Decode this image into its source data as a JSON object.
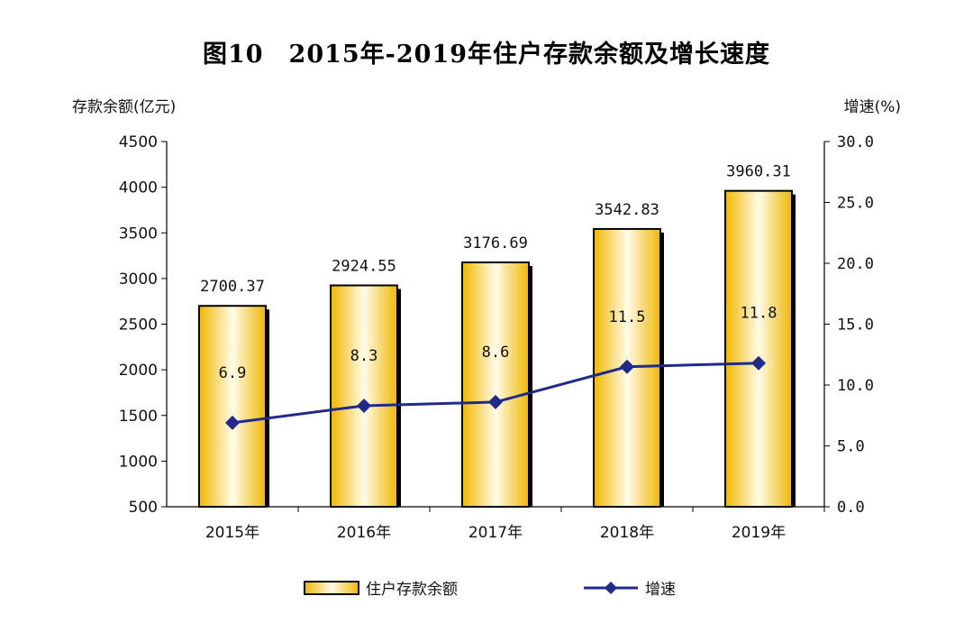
{
  "chart_data": {
    "type": "bar",
    "title": "图10　2015年-2019年住户存款余额及增长速度",
    "categories": [
      "2015年",
      "2016年",
      "2017年",
      "2018年",
      "2019年"
    ],
    "ylabel": "存款余额(亿元)",
    "y2label": "增速(%)",
    "ylim": [
      500,
      4500
    ],
    "y2lim": [
      0,
      30
    ],
    "yticks": [
      "4500",
      "4000",
      "3500",
      "3000",
      "2500",
      "2000",
      "1500",
      "1000",
      "500"
    ],
    "y2ticks": [
      "30.0",
      "25.0",
      "20.0",
      "15.0",
      "10.0",
      "5.0",
      "0.0"
    ],
    "grid": false,
    "legend_position": "bottom",
    "series": [
      {
        "name": "住户存款余额",
        "type": "bar",
        "axis": "left",
        "values": [
          2700.37,
          2924.55,
          3176.69,
          3542.83,
          3960.31
        ],
        "labels": [
          "2700.37",
          "2924.55",
          "3176.69",
          "3542.83",
          "3960.31"
        ],
        "color": "#F5C400"
      },
      {
        "name": "增速",
        "type": "line",
        "axis": "right",
        "values": [
          6.9,
          8.3,
          8.6,
          11.5,
          11.8
        ],
        "labels": [
          "6.9",
          "8.3",
          "8.6",
          "11.5",
          "11.8"
        ],
        "color": "#1F2A8C"
      }
    ]
  }
}
